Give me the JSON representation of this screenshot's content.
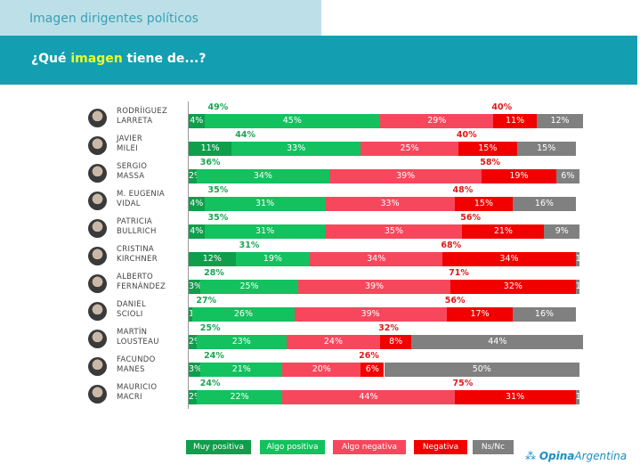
{
  "header": {
    "section_title": "Imagen dirigentes políticos",
    "question_pre": "¿Qué ",
    "question_highlight": "imagen",
    "question_post": " tiene de...?"
  },
  "colors": {
    "muy_positiva": "#0e9e4c",
    "algo_positiva": "#13c15e",
    "algo_negativa": "#f7475d",
    "negativa": "#f20000",
    "ns_nc": "#808080",
    "positive_total": "#1aa552",
    "negative_total": "#e01818"
  },
  "chart_data": {
    "type": "bar",
    "stacked": true,
    "orientation": "horizontal",
    "categories": [
      "RODRÍIGUEZ\nLARRETA",
      "JAVIER\nMILEI",
      "SERGIO\nMASSA",
      "M. EUGENIA\nVIDAL",
      "PATRICIA\nBULLRICH",
      "CRISTINA\nKIRCHNER",
      "ALBERTO\nFERNÁNDEZ",
      "DANIEL\nSCIOLI",
      "MARTÍN\nLOUSTEAU",
      "FACUNDO\nMANES",
      "MAURICIO\nMACRI"
    ],
    "series": [
      {
        "name": "Muy positiva",
        "values": [
          4,
          11,
          2,
          4,
          4,
          12,
          3,
          1,
          2,
          3,
          2
        ]
      },
      {
        "name": "Algo positiva",
        "values": [
          45,
          33,
          34,
          31,
          31,
          19,
          25,
          26,
          23,
          21,
          22
        ]
      },
      {
        "name": "Algo negativa",
        "values": [
          29,
          25,
          39,
          33,
          35,
          34,
          39,
          39,
          24,
          20,
          44
        ]
      },
      {
        "name": "Negativa",
        "values": [
          11,
          15,
          19,
          15,
          21,
          34,
          32,
          17,
          8,
          6,
          31
        ]
      },
      {
        "name": "Ns/Nc",
        "values": [
          12,
          15,
          6,
          16,
          9,
          1,
          1,
          16,
          44,
          50,
          1
        ]
      }
    ],
    "positive_totals": [
      49,
      44,
      36,
      35,
      35,
      31,
      28,
      27,
      25,
      24,
      24
    ],
    "negative_totals": [
      40,
      40,
      58,
      48,
      56,
      68,
      71,
      56,
      32,
      26,
      75
    ],
    "legend": "bottom"
  },
  "brand": {
    "name_bold": "Opina",
    "name_rest": "Argentina"
  }
}
